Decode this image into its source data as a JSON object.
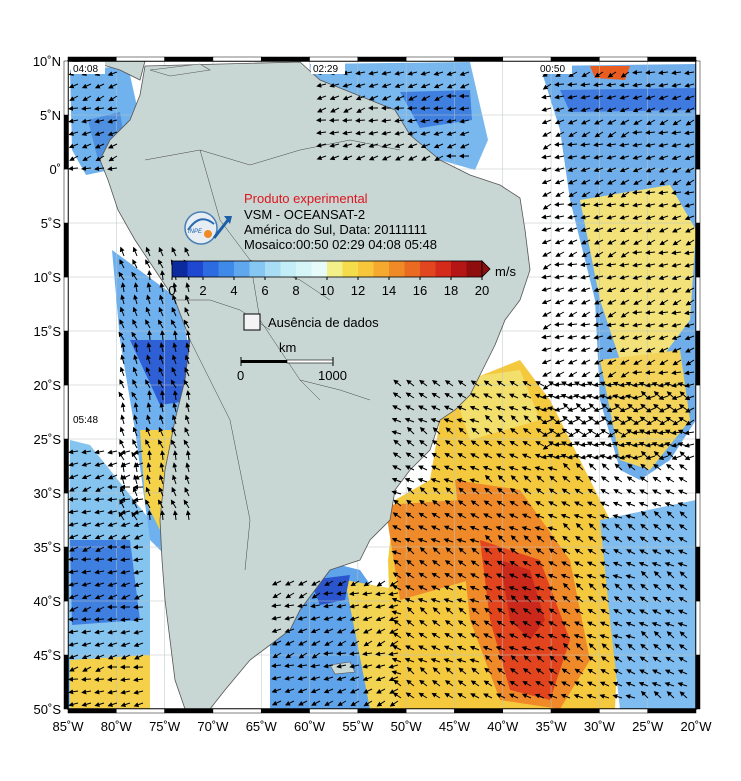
{
  "header": {
    "title": "Produto experimental",
    "line1": "VSM - OCEANSAT-2",
    "line2": "América do Sul, Data: 20111111",
    "line3": "Mosaico:00:50 02:29 04:08 05:48"
  },
  "colorbar": {
    "unit": "m/s",
    "ticks": [
      "0",
      "2",
      "4",
      "6",
      "8",
      "10",
      "12",
      "14",
      "16",
      "18",
      "20"
    ],
    "colors": [
      "#0a2a9e",
      "#1f48d0",
      "#2d6be0",
      "#3f8ae8",
      "#5fa8ee",
      "#86c6f2",
      "#a9dcf5",
      "#c4eef7",
      "#d6f5f6",
      "#e7fbfb",
      "#f3f08a",
      "#f5dc4a",
      "#f7c63a",
      "#f5a92e",
      "#f08a26",
      "#eb6a22",
      "#e2461e",
      "#d42a1a",
      "#b41616",
      "#8e0e0e"
    ]
  },
  "legend": {
    "no_data": "Ausência de dados"
  },
  "scalebar": {
    "unit": "km",
    "min": "0",
    "max": "1000"
  },
  "pass_times": [
    "04:08",
    "02:29",
    "00:50",
    "05:48"
  ],
  "axes": {
    "y_labels": [
      "10˚N",
      "5˚N",
      "0˚",
      "5˚S",
      "10˚S",
      "15˚S",
      "20˚S",
      "25˚S",
      "30˚S",
      "35˚S",
      "40˚S",
      "45˚S",
      "50˚S"
    ],
    "x_labels": [
      "85˚W",
      "80˚W",
      "75˚W",
      "70˚W",
      "65˚W",
      "60˚W",
      "55˚W",
      "50˚W",
      "45˚W",
      "40˚W",
      "35˚W",
      "30˚W",
      "25˚W",
      "20˚W"
    ],
    "lon_range": [
      -85,
      -20
    ],
    "lat_range": [
      -50,
      10
    ]
  },
  "colors": {
    "land": "#c8d6d4",
    "ocean": "#ffffff",
    "title_red": "#e0141c"
  }
}
